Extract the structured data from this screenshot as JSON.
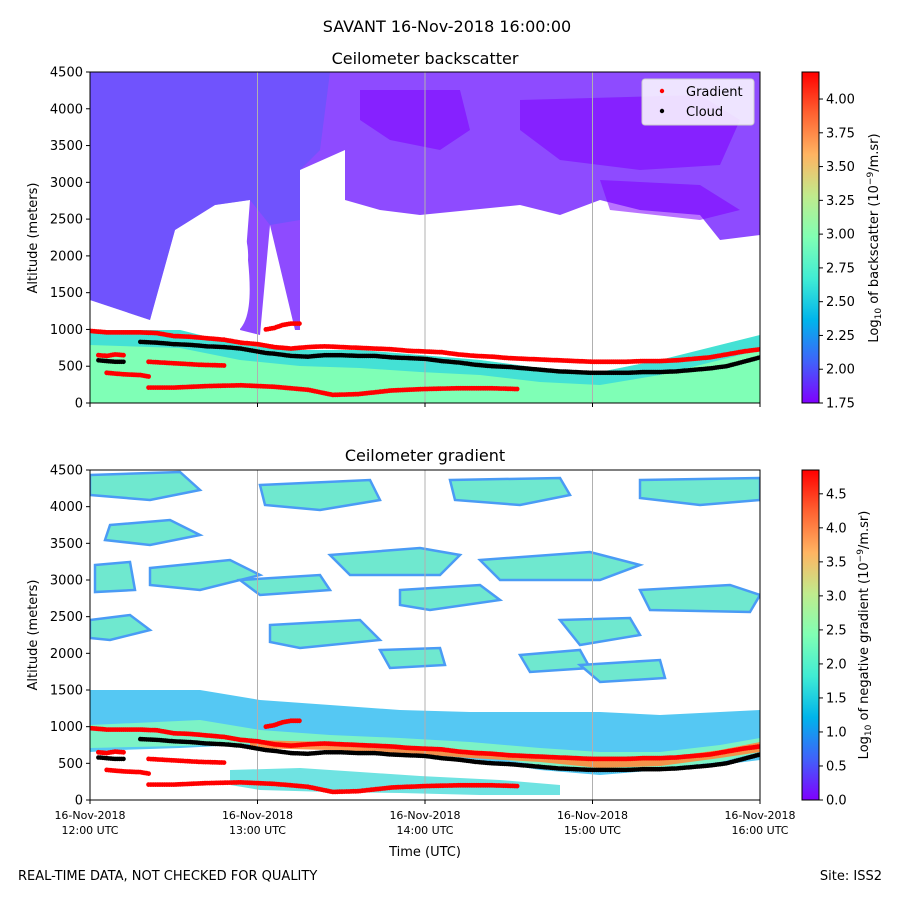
{
  "suptitle": "SAVANT 16-Nov-2018 16:00:00",
  "footer": {
    "left": "REAL-TIME DATA, NOT CHECKED FOR QUALITY",
    "right": "Site: ISS2"
  },
  "colors": {
    "gradient_marker": "#ff0000",
    "cloud_marker": "#000000",
    "colormap": [
      "#8000ff",
      "#4062fa",
      "#00b4eb",
      "#40ecd4",
      "#80ffb4",
      "#c0eb8d",
      "#ffb462",
      "#ff6231",
      "#ff0000"
    ]
  },
  "chart_data": [
    {
      "type": "heatmap",
      "title": "Ceilometer backscatter",
      "ylabel": "Altitude (meters)",
      "ylim": [
        0,
        4500
      ],
      "yticks": [
        "0",
        "500",
        "1000",
        "1500",
        "2000",
        "2500",
        "3000",
        "3500",
        "4000",
        "4500"
      ],
      "xlim": [
        12.0,
        16.0
      ],
      "grid": "vertical",
      "colorbar": {
        "label_prefix": "Log",
        "label_sub": "10",
        "label_mid": " of backscatter (10",
        "label_sup": "−9",
        "label_suffix": "/m.sr)",
        "range": [
          1.75,
          4.2
        ],
        "ticks": [
          "1.75",
          "2.00",
          "2.25",
          "2.50",
          "2.75",
          "3.00",
          "3.25",
          "3.50",
          "3.75",
          "4.00"
        ]
      },
      "legend": {
        "placement": "upper right",
        "entries": [
          {
            "label": "Gradient",
            "color": "#ff0000"
          },
          {
            "label": "Cloud",
            "color": "#000000"
          }
        ]
      }
    },
    {
      "type": "heatmap",
      "title": "Ceilometer gradient",
      "ylabel": "Altitude (meters)",
      "xlabel": "Time (UTC)",
      "ylim": [
        0,
        4500
      ],
      "yticks": [
        "0",
        "500",
        "1000",
        "1500",
        "2000",
        "2500",
        "3000",
        "3500",
        "4000",
        "4500"
      ],
      "xlim": [
        12.0,
        16.0
      ],
      "xticks": [
        {
          "value": 12,
          "line1": "16-Nov-2018",
          "line2": "12:00 UTC"
        },
        {
          "value": 13,
          "line1": "16-Nov-2018",
          "line2": "13:00 UTC"
        },
        {
          "value": 14,
          "line1": "16-Nov-2018",
          "line2": "14:00 UTC"
        },
        {
          "value": 15,
          "line1": "16-Nov-2018",
          "line2": "15:00 UTC"
        },
        {
          "value": 16,
          "line1": "16-Nov-2018",
          "line2": "16:00 UTC"
        }
      ],
      "grid": "vertical",
      "colorbar": {
        "label_prefix": "Log",
        "label_sub": "10",
        "label_mid": " of negative gradient (10",
        "label_sup": "−9",
        "label_suffix": "/m.sr)",
        "range": [
          0.0,
          4.85
        ],
        "ticks": [
          "0.0",
          "0.5",
          "1.0",
          "1.5",
          "2.0",
          "2.5",
          "3.0",
          "3.5",
          "4.0",
          "4.5"
        ]
      }
    }
  ],
  "series": {
    "gradient_main": {
      "name": "Gradient",
      "x": [
        12.0,
        12.1,
        12.2,
        12.3,
        12.4,
        12.5,
        12.6,
        12.7,
        12.8,
        12.9,
        13.0,
        13.05,
        13.1,
        13.2,
        13.3,
        13.4,
        13.5,
        13.6,
        13.7,
        13.8,
        13.9,
        14.0,
        14.1,
        14.2,
        14.3,
        14.4,
        14.5,
        14.6,
        14.7,
        14.8,
        14.9,
        15.0,
        15.1,
        15.2,
        15.3,
        15.4,
        15.5,
        15.6,
        15.7,
        15.8,
        15.9,
        16.0
      ],
      "y": [
        980,
        960,
        960,
        960,
        950,
        910,
        900,
        880,
        860,
        820,
        800,
        780,
        760,
        740,
        760,
        770,
        760,
        750,
        740,
        730,
        710,
        700,
        690,
        660,
        640,
        630,
        610,
        600,
        590,
        580,
        570,
        560,
        560,
        560,
        570,
        570,
        580,
        600,
        620,
        660,
        700,
        730
      ]
    },
    "gradient_upper": {
      "x": [
        13.05,
        13.1,
        13.15,
        13.2,
        13.25
      ],
      "y": [
        1000,
        1020,
        1060,
        1080,
        1080
      ]
    },
    "gradient_low1": {
      "x": [
        12.05,
        12.1,
        12.15,
        12.2
      ],
      "y": [
        650,
        640,
        660,
        650
      ]
    },
    "gradient_low2": {
      "x": [
        12.35,
        12.5,
        12.65,
        12.8
      ],
      "y": [
        560,
        540,
        520,
        510
      ]
    },
    "gradient_low3": {
      "x": [
        12.1,
        12.2,
        12.3,
        12.35
      ],
      "y": [
        410,
        390,
        380,
        360
      ]
    },
    "gradient_ground": {
      "x": [
        12.35,
        12.5,
        12.7,
        12.9,
        13.1,
        13.3,
        13.45,
        13.6,
        13.8,
        14.0,
        14.2,
        14.4,
        14.55
      ],
      "y": [
        210,
        210,
        230,
        240,
        220,
        180,
        110,
        120,
        170,
        190,
        200,
        200,
        190
      ]
    },
    "cloud_main": {
      "name": "Cloud",
      "x": [
        12.3,
        12.4,
        12.5,
        12.6,
        12.7,
        12.8,
        12.9,
        13.05,
        13.1,
        13.2,
        13.3,
        13.4,
        13.5,
        13.6,
        13.7,
        13.8,
        13.9,
        14.0,
        14.1,
        14.2,
        14.3,
        14.4,
        14.5,
        14.6,
        14.7,
        14.8,
        14.9,
        15.0,
        15.1,
        15.2,
        15.3,
        15.4,
        15.5,
        15.6,
        15.7,
        15.8,
        15.9,
        16.0
      ],
      "y": [
        830,
        820,
        800,
        790,
        770,
        760,
        740,
        680,
        670,
        640,
        630,
        650,
        650,
        640,
        640,
        620,
        610,
        600,
        570,
        550,
        520,
        500,
        490,
        470,
        450,
        430,
        420,
        410,
        410,
        410,
        420,
        420,
        430,
        450,
        470,
        500,
        560,
        620
      ]
    },
    "cloud_low": {
      "x": [
        12.05,
        12.1,
        12.15,
        12.2
      ],
      "y": [
        580,
        570,
        560,
        560
      ]
    }
  }
}
